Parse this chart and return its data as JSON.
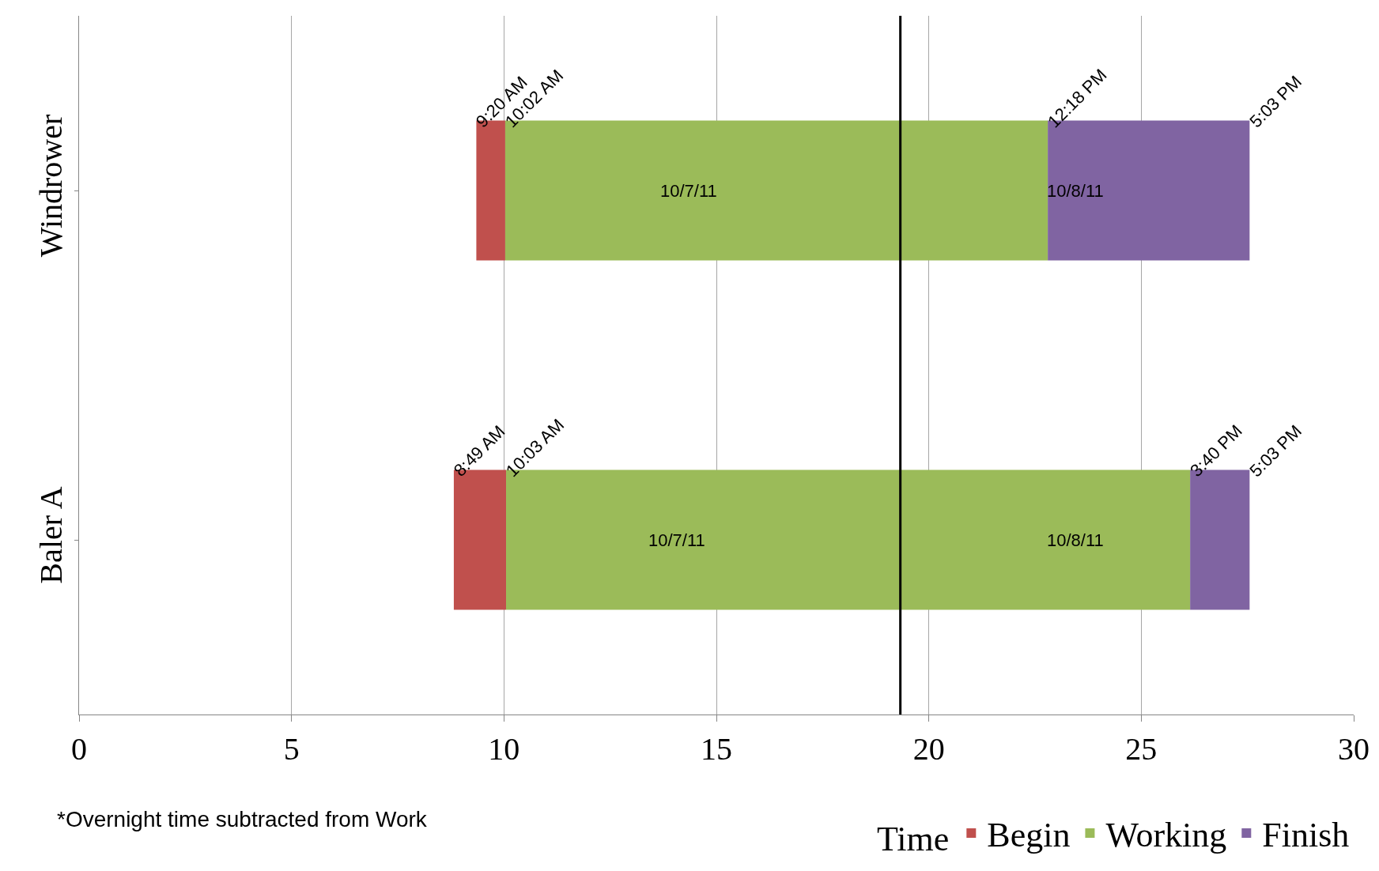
{
  "chart_data": {
    "type": "bar",
    "orientation": "horizontal",
    "categories": [
      "Windrower",
      "Baler A"
    ],
    "series": [
      {
        "name": "Begin",
        "color": "#c0504d",
        "base": [
          9.35,
          8.82
        ],
        "values": [
          0.68,
          1.23
        ]
      },
      {
        "name": "Working",
        "color": "#9bbb59",
        "base": [
          10.03,
          10.05
        ],
        "values": [
          12.77,
          16.1
        ]
      },
      {
        "name": "Finish",
        "color": "#8064a2",
        "base": [
          22.8,
          26.15
        ],
        "values": [
          4.75,
          1.4
        ]
      }
    ],
    "xlim": [
      0,
      30
    ],
    "xticks": [
      0,
      5,
      10,
      15,
      20,
      25,
      30
    ],
    "grid": "x",
    "legend": "bottom",
    "legend_title": "Time",
    "ref_lines": [
      {
        "axis": "x",
        "value": 19.33,
        "color": "#000000"
      }
    ],
    "annotations": [
      "9:20 AM",
      "10:02 AM",
      "12:18 PM",
      "5:03 PM",
      "8:49 AM",
      "10:03 AM",
      "3:40 PM",
      "5:03 PM",
      "10/7/11",
      "10/8/11",
      "10/7/11",
      "10/8/11",
      "*Overnight time subtracted from Work"
    ]
  }
}
